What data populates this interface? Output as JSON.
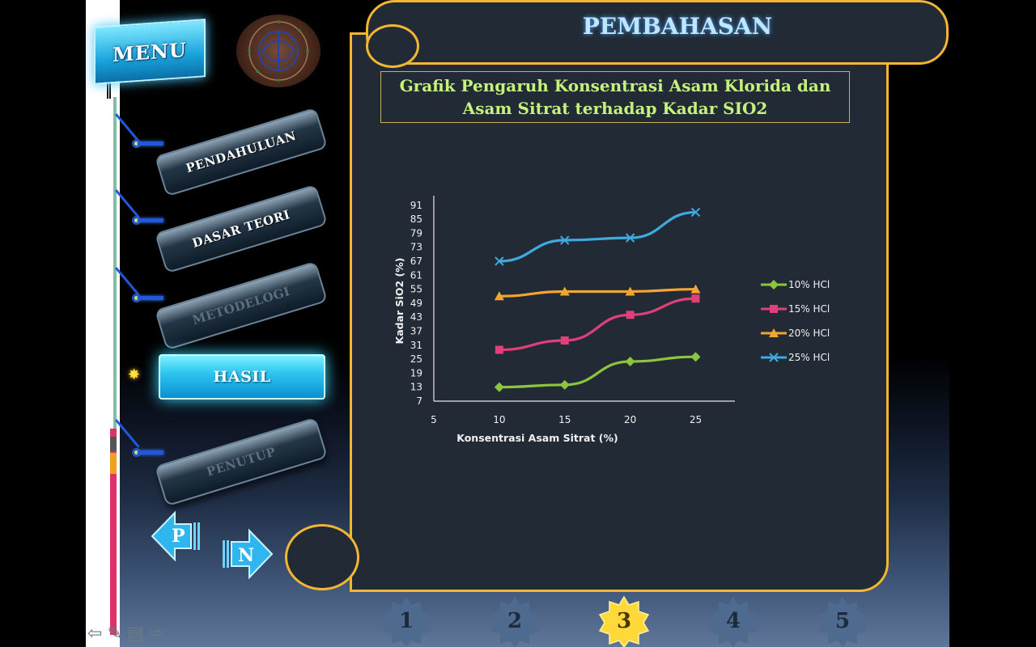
{
  "menu": {
    "label": "MENU"
  },
  "nav": [
    {
      "label": "PENDAHULUAN",
      "state": "normal"
    },
    {
      "label": "DASAR TEORI",
      "state": "normal"
    },
    {
      "label": "METODELOGI",
      "state": "dim"
    },
    {
      "label": "HASIL",
      "state": "active"
    },
    {
      "label": "PENUTUP",
      "state": "dim"
    }
  ],
  "prev_button": {
    "label": "P"
  },
  "next_button": {
    "label": "N"
  },
  "page": {
    "title": "PEMBAHASAN"
  },
  "chart_title": {
    "line1": "Grafik Pengaruh Konsentrasi Asam Klorida dan",
    "line2": "Asam Sitrat  terhadap Kadar SIO2"
  },
  "chart_data": {
    "type": "line",
    "xlabel": "Konsentrasi Asam Sitrat (%)",
    "ylabel": "Kadar SiO2 (%)",
    "x": [
      10,
      15,
      20,
      25
    ],
    "xticks": [
      5,
      10,
      15,
      20,
      25
    ],
    "xlim": [
      5,
      28
    ],
    "ylim": [
      7,
      93
    ],
    "yticks": [
      7,
      13,
      19,
      25,
      31,
      37,
      43,
      49,
      55,
      61,
      67,
      73,
      79,
      85,
      91
    ],
    "legend_position": "right",
    "series": [
      {
        "name": "10% HCl",
        "color": "#8cc63f",
        "marker": "diamond",
        "values": [
          13,
          14,
          24,
          26
        ]
      },
      {
        "name": "15% HCl",
        "color": "#e0407a",
        "marker": "square",
        "values": [
          29,
          33,
          44,
          51
        ]
      },
      {
        "name": "20% HCl",
        "color": "#f2a630",
        "marker": "triangle",
        "values": [
          52,
          54,
          54,
          55
        ]
      },
      {
        "name": "25% HCl",
        "color": "#3fa9e0",
        "marker": "x",
        "values": [
          67,
          76,
          77,
          88
        ]
      }
    ]
  },
  "page_numbers": [
    {
      "label": "1",
      "active": false
    },
    {
      "label": "2",
      "active": false
    },
    {
      "label": "3",
      "active": true
    },
    {
      "label": "4",
      "active": false
    },
    {
      "label": "5",
      "active": false
    }
  ]
}
